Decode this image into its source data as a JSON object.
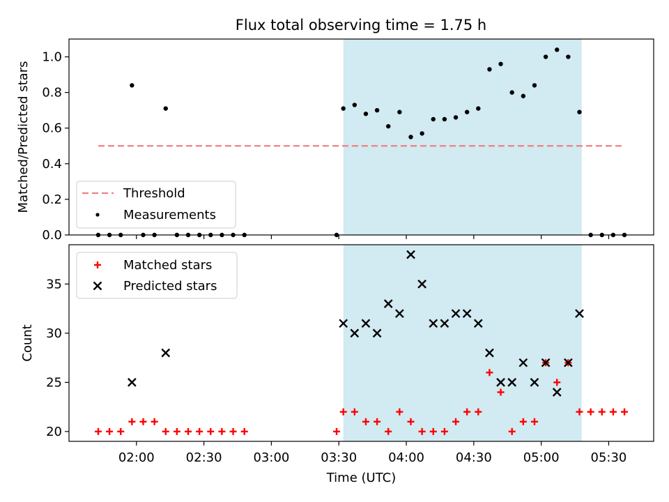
{
  "title": "Flux total observing time = 1.75 h",
  "colors": {
    "threshold": "#f08080",
    "measurement": "#000000",
    "matched": "#ff0000",
    "predicted": "#000000",
    "shade": "#add8e6"
  },
  "chart_data": [
    {
      "type": "scatter",
      "ylabel": "Matched/Predicted stars",
      "xlim": [
        "01:30",
        "05:50"
      ],
      "ylim": [
        0,
        1.1
      ],
      "y_ticks": [
        "0.0",
        "0.2",
        "0.4",
        "0.6",
        "0.8",
        "1.0"
      ],
      "grid": false,
      "legend_position": "lower-left",
      "shaded_interval": [
        "03:32",
        "05:18"
      ],
      "threshold": {
        "name": "Threshold",
        "value": 0.5,
        "x_range": [
          "01:43",
          "05:36"
        ]
      },
      "series": [
        {
          "name": "Measurements",
          "x": [
            "01:43",
            "01:48",
            "01:53",
            "01:58",
            "02:03",
            "02:08",
            "02:13",
            "02:18",
            "02:23",
            "02:28",
            "02:33",
            "02:38",
            "02:43",
            "02:48",
            "03:29",
            "03:32",
            "03:37",
            "03:42",
            "03:47",
            "03:52",
            "03:57",
            "04:02",
            "04:07",
            "04:12",
            "04:17",
            "04:22",
            "04:27",
            "04:32",
            "04:37",
            "04:42",
            "04:47",
            "04:52",
            "04:57",
            "05:02",
            "05:07",
            "05:12",
            "05:17",
            "05:22",
            "05:27",
            "05:32",
            "05:37"
          ],
          "y": [
            0,
            0,
            0,
            0.84,
            0,
            0,
            0.71,
            0,
            0,
            0,
            0,
            0,
            0,
            0,
            0,
            0.71,
            0.73,
            0.68,
            0.7,
            0.61,
            0.69,
            0.55,
            0.57,
            0.65,
            0.65,
            0.66,
            0.69,
            0.71,
            0.93,
            0.96,
            0.8,
            0.78,
            0.84,
            1.0,
            1.04,
            1.0,
            0.69,
            0,
            0,
            0,
            0
          ]
        }
      ]
    },
    {
      "type": "scatter",
      "xlabel": "Time (UTC)",
      "ylabel": "Count",
      "xlim": [
        "01:30",
        "05:50"
      ],
      "ylim": [
        19,
        39
      ],
      "x_ticks": [
        "02:00",
        "02:30",
        "03:00",
        "03:30",
        "04:00",
        "04:30",
        "05:00",
        "05:30"
      ],
      "y_ticks": [
        "20",
        "25",
        "30",
        "35"
      ],
      "grid": false,
      "legend_position": "upper-left",
      "shaded_interval": [
        "03:32",
        "05:18"
      ],
      "series": [
        {
          "name": "Matched stars",
          "x": [
            "01:43",
            "01:48",
            "01:53",
            "01:58",
            "02:03",
            "02:08",
            "02:13",
            "02:18",
            "02:23",
            "02:28",
            "02:33",
            "02:38",
            "02:43",
            "02:48",
            "03:29",
            "03:32",
            "03:37",
            "03:42",
            "03:47",
            "03:52",
            "03:57",
            "04:02",
            "04:07",
            "04:12",
            "04:17",
            "04:22",
            "04:27",
            "04:32",
            "04:37",
            "04:42",
            "04:47",
            "04:52",
            "04:57",
            "05:02",
            "05:07",
            "05:12",
            "05:17",
            "05:22",
            "05:27",
            "05:32",
            "05:37"
          ],
          "y": [
            20,
            20,
            20,
            21,
            21,
            21,
            20,
            20,
            20,
            20,
            20,
            20,
            20,
            20,
            20,
            22,
            22,
            21,
            21,
            20,
            22,
            21,
            20,
            20,
            20,
            21,
            22,
            22,
            26,
            24,
            20,
            21,
            21,
            27,
            25,
            27,
            22,
            22,
            22,
            22,
            22
          ]
        },
        {
          "name": "Predicted stars",
          "x": [
            "01:58",
            "02:13",
            "03:32",
            "03:37",
            "03:42",
            "03:47",
            "03:52",
            "03:57",
            "04:02",
            "04:07",
            "04:12",
            "04:17",
            "04:22",
            "04:27",
            "04:32",
            "04:37",
            "04:42",
            "04:47",
            "04:52",
            "04:57",
            "05:02",
            "05:07",
            "05:12",
            "05:17"
          ],
          "y": [
            25,
            28,
            31,
            30,
            31,
            30,
            33,
            32,
            38,
            35,
            31,
            31,
            32,
            32,
            31,
            28,
            25,
            25,
            27,
            25,
            27,
            24,
            27,
            32
          ]
        }
      ]
    }
  ]
}
